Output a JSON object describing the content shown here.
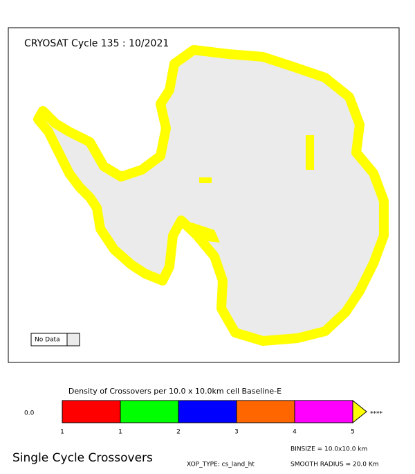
{
  "map": {
    "title": "CRYOSAT Cycle 135 : 10/2021",
    "no_data_label": "No Data"
  },
  "legend": {
    "title": "Density of Crossovers per  10.0 x  10.0km cell Baseline-E",
    "low_label": "0.0",
    "high_label": "****",
    "colors": [
      "#ff0000",
      "#00ff00",
      "#0000ff",
      "#ff6600",
      "#ff00ff",
      "#ffff00"
    ],
    "tick_labels": [
      "1",
      "1",
      "2",
      "3",
      "4",
      "5"
    ]
  },
  "footer": {
    "heading": "Single Cycle Crossovers",
    "binsize": "BINSIZE = 10.0x10.0 km",
    "xop_type": "XOP_TYPE: cs_land_ht",
    "smooth_radius": "SMOOTH RADIUS =  20.0 Km"
  }
}
